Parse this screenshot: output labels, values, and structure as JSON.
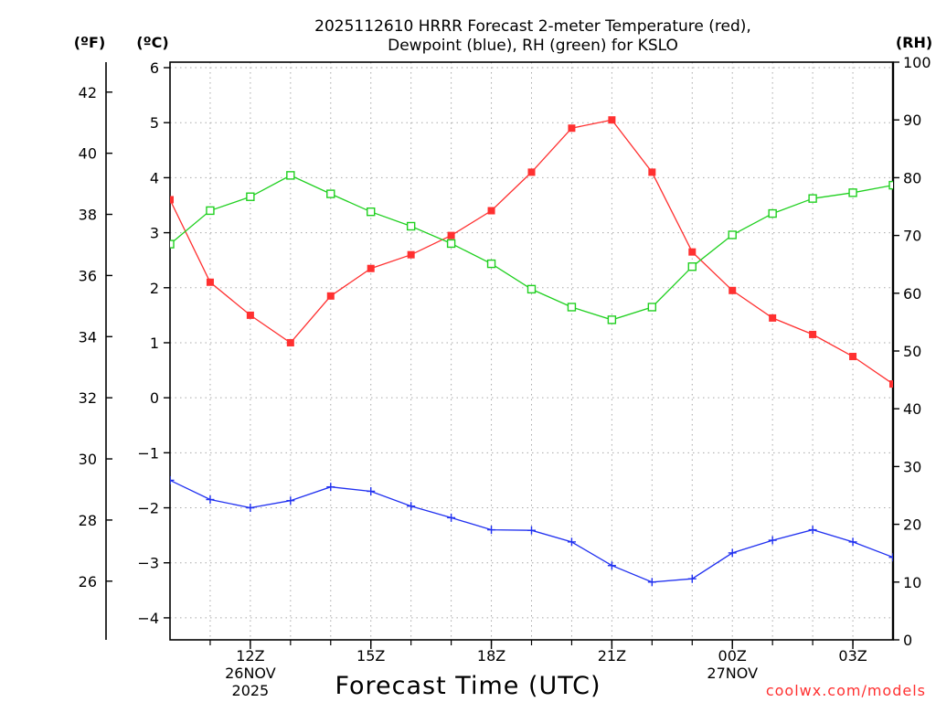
{
  "chart_data": {
    "type": "line",
    "title_line1": "2025112610 HRRR Forecast 2-meter Temperature (red),",
    "title_line2": "Dewpoint (blue), RH (green) for KSLO",
    "left_unit_f": "(ºF)",
    "left_unit_c": "(ºC)",
    "right_unit": "(RH)",
    "xlabel": "Forecast Time (UTC)",
    "credit": "coolwx.com/models",
    "celsius_axis": {
      "ylim": [
        -4.4,
        6.1
      ],
      "ticks": [
        -4,
        -3,
        -2,
        -1,
        0,
        1,
        2,
        3,
        4,
        5,
        6
      ],
      "tick_labels": [
        "−4",
        "−3",
        "−2",
        "−1",
        "0",
        "1",
        "2",
        "3",
        "4",
        "5",
        "6"
      ]
    },
    "fahrenheit_axis": {
      "ticks": [
        26,
        28,
        30,
        32,
        34,
        36,
        38,
        40,
        42
      ],
      "tick_labels": [
        "26",
        "28",
        "30",
        "32",
        "34",
        "36",
        "38",
        "40",
        "42"
      ]
    },
    "rh_axis": {
      "ylim": [
        0,
        100
      ],
      "ticks": [
        0,
        10,
        20,
        30,
        40,
        50,
        60,
        70,
        80,
        90,
        100
      ],
      "tick_labels": [
        "0",
        "10",
        "20",
        "30",
        "40",
        "50",
        "60",
        "70",
        "80",
        "90",
        "100"
      ]
    },
    "x": [
      10,
      11,
      12,
      13,
      14,
      15,
      16,
      17,
      18,
      19,
      20,
      21,
      22,
      23,
      24,
      25,
      26,
      27,
      28
    ],
    "xlim": [
      10,
      28
    ],
    "x_gridlines": [
      11,
      12,
      13,
      14,
      15,
      16,
      17,
      18,
      19,
      20,
      21,
      22,
      23,
      24,
      25,
      26,
      27
    ],
    "x_ticks": [
      {
        "x": 12,
        "lines": [
          "12Z",
          "26NOV",
          "2025"
        ]
      },
      {
        "x": 15,
        "lines": [
          "15Z"
        ]
      },
      {
        "x": 18,
        "lines": [
          "18Z"
        ]
      },
      {
        "x": 21,
        "lines": [
          "21Z"
        ]
      },
      {
        "x": 24,
        "lines": [
          "00Z",
          "27NOV"
        ]
      },
      {
        "x": 27,
        "lines": [
          "03Z"
        ]
      }
    ],
    "series": [
      {
        "name": "Temperature",
        "axis": "celsius",
        "color": "#ff3030",
        "marker": "filled-square",
        "values": [
          3.6,
          2.1,
          1.5,
          1.0,
          1.85,
          2.35,
          2.6,
          2.95,
          3.4,
          4.1,
          4.9,
          5.05,
          4.1,
          2.65,
          1.95,
          1.45,
          1.15,
          0.75,
          0.25
        ]
      },
      {
        "name": "Dewpoint",
        "axis": "celsius",
        "color": "#2030f0",
        "marker": "plus",
        "values": [
          -1.5,
          -1.85,
          -2.0,
          -1.87,
          -1.62,
          -1.7,
          -1.97,
          -2.18,
          -2.4,
          -2.41,
          -2.62,
          -3.05,
          -3.35,
          -3.29,
          -2.82,
          -2.59,
          -2.4,
          -2.62,
          -2.9
        ]
      },
      {
        "name": "RH",
        "axis": "rh",
        "color": "#20d020",
        "marker": "open-square",
        "values": [
          68.5,
          74.3,
          76.7,
          80.4,
          77.2,
          74.1,
          71.6,
          68.6,
          65.1,
          60.7,
          57.6,
          55.4,
          57.6,
          64.6,
          70.1,
          73.8,
          76.4,
          77.4,
          78.7
        ]
      }
    ]
  }
}
